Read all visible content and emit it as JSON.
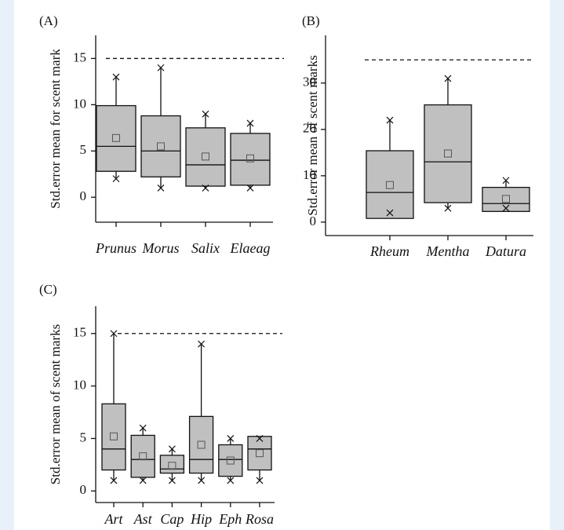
{
  "chart_data": [
    {
      "type": "box",
      "panel_label": "(A)",
      "ylabel": "Std.error mean for scent mark",
      "categories": [
        "Prunus",
        "Morus",
        "Salix",
        "Elaeag"
      ],
      "max": [
        13,
        14,
        9,
        8
      ],
      "q3": [
        9.9,
        8.8,
        7.5,
        6.9
      ],
      "median": [
        5.5,
        5,
        3.5,
        4
      ],
      "q1": [
        2.8,
        2.2,
        1.2,
        1.3
      ],
      "min": [
        2,
        1,
        1,
        1
      ],
      "mean": [
        6.4,
        5.5,
        4.4,
        4.2
      ],
      "reference_line": 15,
      "color": "#c0c0c0",
      "ylim": [
        -2.7,
        17.5
      ],
      "yticks": [
        0,
        5,
        10,
        15
      ]
    },
    {
      "type": "box",
      "panel_label": "(B)",
      "ylabel": "Std.error mean of scent marks",
      "categories": [
        "Rheum",
        "Mentha",
        "Datura"
      ],
      "max": [
        22,
        31,
        9
      ],
      "q3": [
        15.4,
        25.3,
        7.5
      ],
      "median": [
        6.4,
        13,
        4
      ],
      "q1": [
        0.8,
        4.2,
        2.3
      ],
      "min": [
        2,
        3,
        3
      ],
      "mean": [
        8,
        14.8,
        5
      ],
      "reference_line": 35,
      "color": "#c0c0c0",
      "ylim": [
        -2.9,
        40.3
      ],
      "yticks": [
        0,
        10,
        20,
        30
      ]
    },
    {
      "type": "box",
      "panel_label": "(C)",
      "ylabel": "Std.error mean of scent marks",
      "categories": [
        "Art",
        "Ast",
        "Cap",
        "Hip",
        "Eph",
        "Rosa"
      ],
      "max": [
        15,
        6,
        4,
        14,
        5,
        5
      ],
      "q3": [
        8.3,
        5.3,
        3.4,
        7.1,
        4.4,
        5.2
      ],
      "median": [
        4,
        3,
        2.1,
        3,
        3,
        4
      ],
      "q1": [
        2,
        1.3,
        1.7,
        1.7,
        1.4,
        2
      ],
      "min": [
        1,
        1,
        1,
        1,
        1,
        1
      ],
      "mean": [
        5.2,
        3.3,
        2.4,
        4.4,
        2.9,
        3.6
      ],
      "reference_line": 15,
      "color": "#c0c0c0",
      "ylim": [
        -1.1,
        17.6
      ],
      "yticks": [
        0,
        5,
        10,
        15
      ]
    }
  ]
}
